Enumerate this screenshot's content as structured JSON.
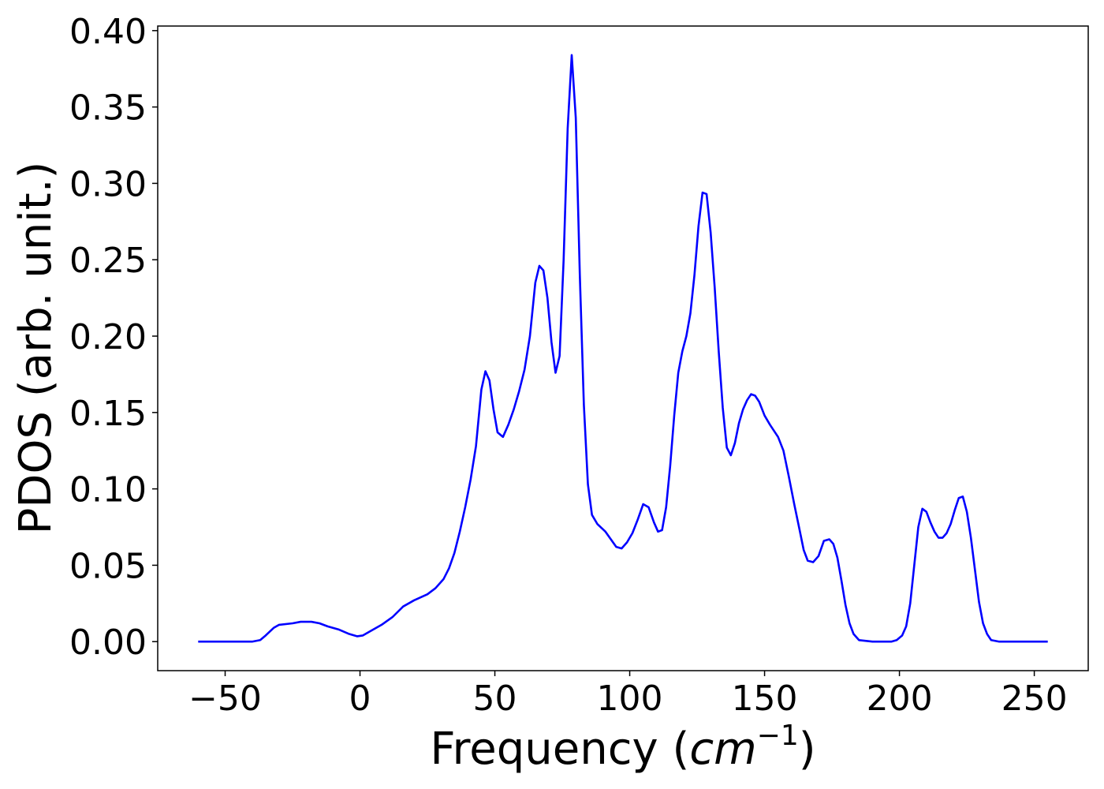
{
  "chart_data": {
    "type": "line",
    "x_label": {
      "text": "Frequency (",
      "math": "cm",
      "sup": "−1",
      "close": ")"
    },
    "y_label": "PDOS (arb. unit.)",
    "xlim": [
      -75,
      270
    ],
    "ylim": [
      -0.019,
      0.403
    ],
    "xticks": [
      {
        "value": -50,
        "label": "−50"
      },
      0,
      50,
      100,
      150,
      200,
      250
    ],
    "yticks": [
      {
        "value": 0,
        "label": "0.00"
      },
      0.05,
      {
        "value": 0.1,
        "label": "0.10"
      },
      0.15,
      {
        "value": 0.2,
        "label": "0.20"
      },
      0.25,
      {
        "value": 0.3,
        "label": "0.30"
      },
      0.35,
      {
        "value": 0.4,
        "label": "0.40"
      }
    ],
    "grid": false,
    "x": [
      -60,
      -40,
      -37,
      -35,
      -32,
      -30,
      -25,
      -22,
      -18,
      -15,
      -12,
      -8,
      -4,
      -1,
      1,
      4,
      8,
      12,
      16,
      20,
      25,
      28,
      31,
      33,
      35,
      37,
      39,
      41,
      43,
      45,
      46.5,
      48,
      49.5,
      51,
      53,
      55,
      57,
      59,
      61,
      63,
      65,
      66.5,
      68,
      69.5,
      71,
      72.5,
      74,
      75.5,
      77,
      78.5,
      80,
      81.5,
      83,
      84.5,
      86,
      88,
      91,
      93,
      95,
      97,
      99,
      101,
      103,
      105,
      107,
      109,
      110.5,
      112,
      113.5,
      115,
      116.5,
      118,
      119.5,
      121,
      122.5,
      124,
      125.5,
      127,
      128.5,
      130,
      131.5,
      133,
      134.5,
      136,
      137.5,
      139,
      140.5,
      142,
      143.5,
      145,
      146.5,
      148,
      150,
      152,
      155,
      157,
      159,
      161,
      163,
      164.5,
      166,
      168,
      170,
      172,
      174,
      175.5,
      177,
      178.5,
      180,
      181.5,
      183,
      185,
      190,
      197,
      199,
      201,
      202.5,
      204,
      205.5,
      207,
      208.5,
      210,
      211.5,
      213,
      214.5,
      216,
      217.5,
      219,
      220.5,
      222,
      223.5,
      225,
      226.5,
      228,
      229.5,
      231,
      232.5,
      234,
      237,
      255
    ],
    "series": [
      {
        "name": "PDOS",
        "color": "#0000ff",
        "values": [
          0,
          0,
          0.001,
          0.004,
          0.009,
          0.011,
          0.012,
          0.013,
          0.013,
          0.012,
          0.01,
          0.008,
          0.005,
          0.0035,
          0.004,
          0.007,
          0.011,
          0.016,
          0.023,
          0.027,
          0.031,
          0.035,
          0.041,
          0.048,
          0.058,
          0.072,
          0.088,
          0.106,
          0.128,
          0.165,
          0.177,
          0.171,
          0.152,
          0.137,
          0.134,
          0.142,
          0.152,
          0.164,
          0.178,
          0.2,
          0.235,
          0.246,
          0.243,
          0.225,
          0.196,
          0.176,
          0.187,
          0.25,
          0.336,
          0.384,
          0.343,
          0.24,
          0.155,
          0.103,
          0.083,
          0.077,
          0.072,
          0.067,
          0.062,
          0.061,
          0.065,
          0.071,
          0.08,
          0.09,
          0.088,
          0.078,
          0.072,
          0.073,
          0.088,
          0.115,
          0.148,
          0.176,
          0.19,
          0.2,
          0.215,
          0.24,
          0.272,
          0.294,
          0.293,
          0.268,
          0.232,
          0.19,
          0.153,
          0.127,
          0.122,
          0.13,
          0.143,
          0.152,
          0.158,
          0.162,
          0.161,
          0.157,
          0.148,
          0.142,
          0.134,
          0.125,
          0.108,
          0.09,
          0.073,
          0.06,
          0.053,
          0.052,
          0.056,
          0.066,
          0.067,
          0.064,
          0.055,
          0.04,
          0.024,
          0.012,
          0.005,
          0.001,
          0,
          0,
          0.001,
          0.004,
          0.01,
          0.025,
          0.05,
          0.075,
          0.087,
          0.085,
          0.078,
          0.072,
          0.068,
          0.068,
          0.071,
          0.077,
          0.086,
          0.094,
          0.095,
          0.085,
          0.068,
          0.047,
          0.026,
          0.012,
          0.005,
          0.001,
          0,
          0
        ]
      }
    ]
  }
}
